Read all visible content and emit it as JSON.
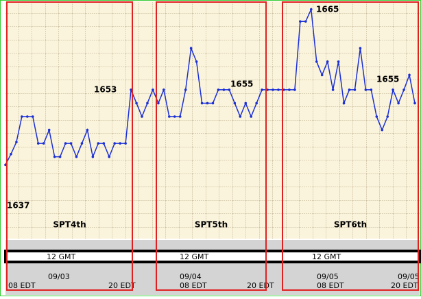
{
  "chart_data": {
    "type": "line",
    "values": [
      1653.4,
      1654.2,
      1655.1,
      1657,
      1657,
      1657,
      1655,
      1655,
      1656,
      1654,
      1654,
      1655,
      1655,
      1654,
      1655,
      1656,
      1654,
      1655,
      1655,
      1654,
      1655,
      1655,
      1655,
      1659,
      1658,
      1657,
      1658,
      1659,
      1658,
      1659,
      1657,
      1657,
      1657,
      1659,
      1662.1,
      1661.1,
      1658,
      1658,
      1658,
      1659,
      1659,
      1659,
      1658,
      1657,
      1658,
      1657,
      1658,
      1659,
      1659,
      1659,
      1659,
      1659,
      1659,
      1659,
      1664.1,
      1664.1,
      1665,
      1661.1,
      1660.1,
      1661.1,
      1659,
      1661.1,
      1658,
      1659,
      1659,
      1662.1,
      1659,
      1659,
      1657,
      1656,
      1657,
      1659,
      1658,
      1659,
      1660.1,
      1658
    ],
    "color": "#1a2fd6",
    "ylim": [
      1648.3,
      1665.7
    ],
    "annotations": [
      "1637",
      "1653",
      "1655",
      "1665",
      "1655"
    ],
    "regions": [
      "SPT4th",
      "SPT5th",
      "SPT6th"
    ],
    "date_labels": [
      "09/03",
      "09/04",
      "09/05",
      "09/05"
    ],
    "time_labels": [
      "08 EDT",
      "20 EDT",
      "08 EDT",
      "20 EDT",
      "08 EDT",
      "20 EDT"
    ],
    "gmt_labels": [
      "12 GMT",
      "12 GMT",
      "12 GMT"
    ]
  }
}
